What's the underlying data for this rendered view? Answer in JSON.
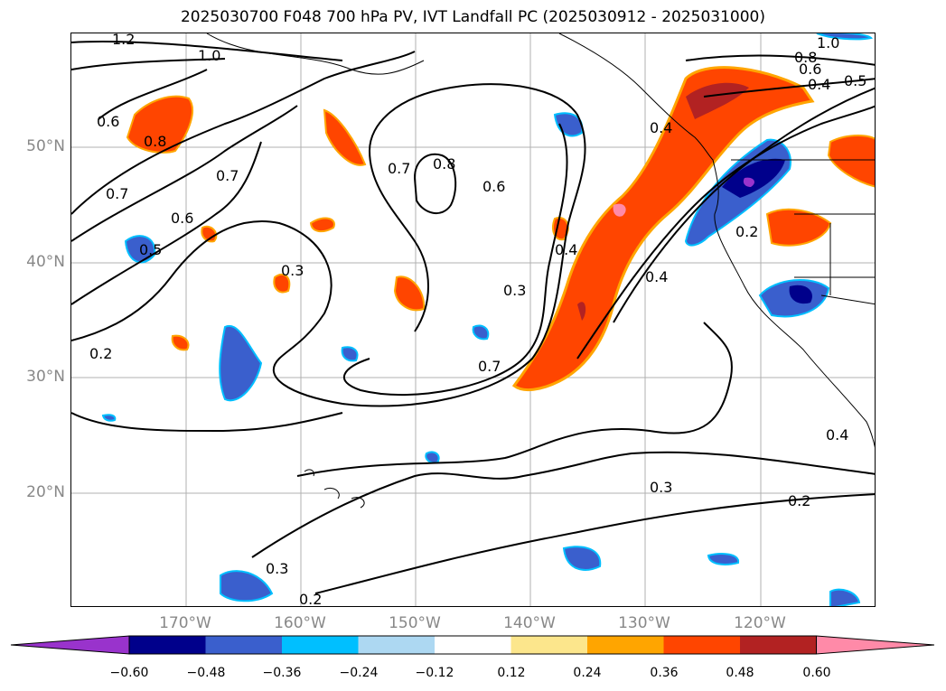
{
  "title": "2025030700 F048 700 hPa PV, IVT Landfall PC (2025030912 - 2025031000)",
  "lat_labels": [
    "50°N",
    "40°N",
    "30°N",
    "20°N"
  ],
  "lon_labels": [
    "170°W",
    "160°W",
    "150°W",
    "140°W",
    "130°W",
    "120°W"
  ],
  "colorbar": {
    "ticks": [
      "−0.60",
      "−0.48",
      "−0.36",
      "−0.24",
      "−0.12",
      "0.12",
      "0.24",
      "0.36",
      "0.48",
      "0.60"
    ],
    "colors": [
      "#9933cc",
      "#00008b",
      "#3a5fcd",
      "#00bfff",
      "#add8f2",
      "#ffffff",
      "#fce68c",
      "#ffa500",
      "#ff4500",
      "#b22222",
      "#ff8aa8"
    ]
  },
  "contour_labels": [
    "1.2",
    "1.0",
    "0.6",
    "0.8",
    "0.7",
    "0.7",
    "0.6",
    "0.5",
    "0.3",
    "0.2",
    "0.7",
    "0.8",
    "0.6",
    "0.3",
    "0.7",
    "0.4",
    "0.4",
    "0.4",
    "0.2",
    "0.3",
    "0.3",
    "0.2",
    "0.2",
    "1.0",
    "0.8",
    "0.6",
    "0.4",
    "0.5",
    "0.4"
  ],
  "contour_unit": "PV",
  "colors": {
    "land_outline": "#000000",
    "grid": "#b0b0b0",
    "label_grey": "#888888"
  }
}
